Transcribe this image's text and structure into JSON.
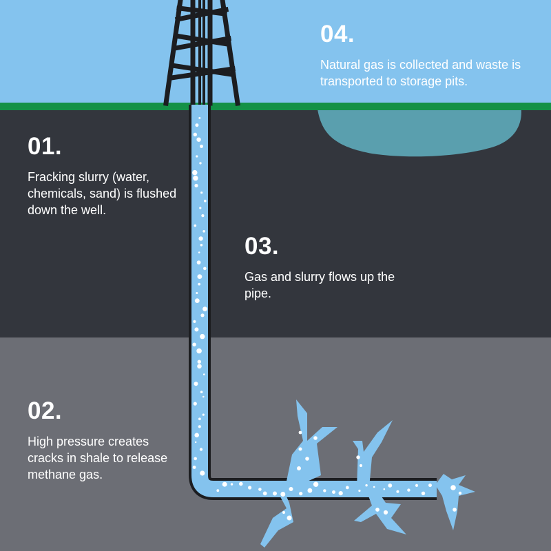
{
  "colors": {
    "sky": "#84c3ee",
    "grass": "#149146",
    "upper_ground": "#33363d",
    "shale": "#6c6e75",
    "pit_water": "#5a9fae",
    "slurry": "#84c3ee",
    "pipe_outline": "#1c1d20",
    "derrick": "#1c1d20",
    "bubbles": "#ffffff"
  },
  "icons": [
    "drilling-derrick-icon",
    "storage-pit-icon",
    "well-pipe-icon",
    "shale-crack-icon",
    "slurry-bubble-icon"
  ],
  "steps": [
    {
      "id": "01",
      "number": "01.",
      "text": "Fracking slurry (water, chemicals, sand) is flushed down the well."
    },
    {
      "id": "02",
      "number": "02.",
      "text": "High pressure creates cracks in shale to release methane gas."
    },
    {
      "id": "03",
      "number": "03.",
      "text": "Gas and slurry flows up the pipe."
    },
    {
      "id": "04",
      "number": "04.",
      "text": "Natural gas is collected and waste is transported to storage pits."
    }
  ]
}
